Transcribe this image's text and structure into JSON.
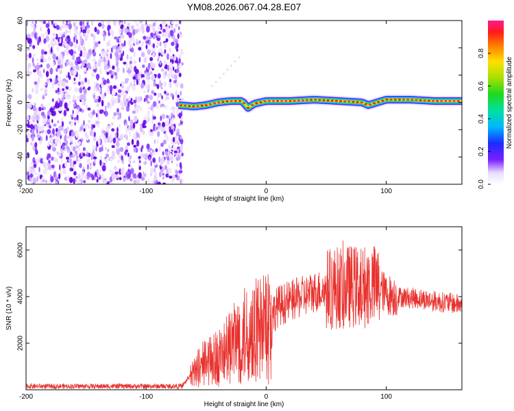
{
  "title": "YM08.2026.067.04.28.E07",
  "chart_data": [
    {
      "type": "heatmap",
      "panel": "spectrogram",
      "xlabel": "Height of straight line (km)",
      "ylabel": "Frequency (Hz)",
      "xlim": [
        -200,
        163
      ],
      "ylim": [
        -60,
        60
      ],
      "xticks": [
        -200,
        -100,
        0,
        100
      ],
      "yticks": [
        -60,
        -40,
        -20,
        0,
        20,
        40,
        60
      ],
      "noise_region_x": [
        -200,
        -72
      ],
      "signal_track": {
        "x": [
          -73,
          -60,
          -50,
          -40,
          -30,
          -20,
          -15,
          -10,
          0,
          20,
          40,
          60,
          80,
          85,
          100,
          120,
          140,
          163
        ],
        "freq_hz": [
          -2,
          -3,
          -2,
          0,
          1,
          1,
          -4,
          -1,
          1,
          1,
          2,
          1,
          0,
          -2,
          2,
          2,
          1,
          1
        ]
      },
      "colorbar": {
        "label": "Normalized spectral amplitude",
        "range": [
          0,
          1
        ],
        "ticks": [
          "0.0",
          "0.2",
          "0.4",
          "0.6",
          "0.8"
        ]
      }
    },
    {
      "type": "line",
      "panel": "snr",
      "xlabel": "Height of straight line (km)",
      "ylabel": "SNR (10 * v/v)",
      "xlim": [
        -200,
        163
      ],
      "ylim": [
        0,
        7000
      ],
      "xticks": [
        -200,
        -100,
        0,
        100
      ],
      "yticks": [
        2000,
        4000,
        6000
      ],
      "color": "#e8312d",
      "series": [
        {
          "name": "SNR",
          "x": [
            -200,
            -150,
            -100,
            -70,
            -62,
            -55,
            -50,
            -40,
            -30,
            -25,
            -20,
            -15,
            -10,
            -5,
            0,
            10,
            20,
            30,
            40,
            50,
            60,
            70,
            80,
            88,
            95,
            100,
            110,
            120,
            130,
            140,
            150,
            163
          ],
          "y": [
            150,
            150,
            150,
            150,
            700,
            1100,
            1300,
            1500,
            1900,
            2300,
            2500,
            2600,
            2700,
            2800,
            2900,
            3600,
            3800,
            4000,
            4200,
            4300,
            4400,
            4450,
            4400,
            4500,
            4350,
            4100,
            4000,
            3950,
            3900,
            3800,
            3750,
            3650
          ]
        }
      ]
    }
  ]
}
